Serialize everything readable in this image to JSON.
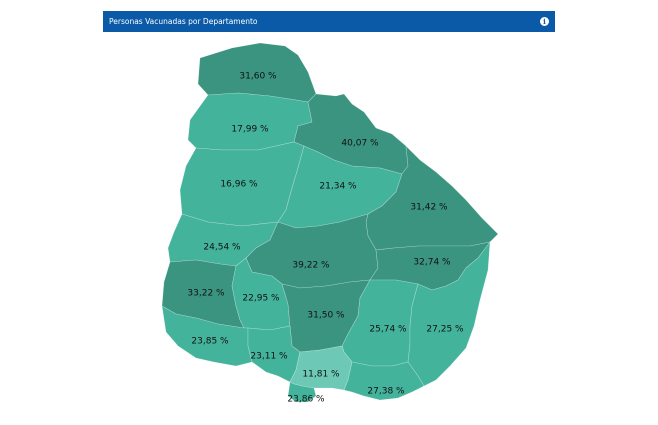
{
  "header": {
    "title": "Personas Vacunadas por Departamento",
    "info_icon": "info-icon"
  },
  "colors": {
    "header_bg": "#0a5aa8",
    "dark": "#3a9480",
    "mid": "#44b39c",
    "light": "#6dc9b6"
  },
  "departments": [
    {
      "id": "artigas",
      "label": "31,60 %",
      "shade": "dark"
    },
    {
      "id": "salto",
      "label": "17,99 %",
      "shade": "mid"
    },
    {
      "id": "rivera",
      "label": "40,07 %",
      "shade": "dark"
    },
    {
      "id": "paysandu",
      "label": "16,96 %",
      "shade": "mid"
    },
    {
      "id": "tacuarembo",
      "label": "21,34 %",
      "shade": "mid"
    },
    {
      "id": "cerro-largo",
      "label": "31,42 %",
      "shade": "dark"
    },
    {
      "id": "rio-negro",
      "label": "24,54 %",
      "shade": "mid"
    },
    {
      "id": "durazno",
      "label": "39,22 %",
      "shade": "dark"
    },
    {
      "id": "treinta-y-tres",
      "label": "32,74 %",
      "shade": "dark"
    },
    {
      "id": "soriano",
      "label": "33,22 %",
      "shade": "dark"
    },
    {
      "id": "flores",
      "label": "22,95 %",
      "shade": "mid"
    },
    {
      "id": "florida",
      "label": "31,50 %",
      "shade": "dark"
    },
    {
      "id": "lavalleja",
      "label": "25,74 %",
      "shade": "mid"
    },
    {
      "id": "rocha",
      "label": "27,25 %",
      "shade": "mid"
    },
    {
      "id": "colonia",
      "label": "23,85 %",
      "shade": "mid"
    },
    {
      "id": "san-jose",
      "label": "23,11 %",
      "shade": "mid"
    },
    {
      "id": "canelones",
      "label": "11,81 %",
      "shade": "light"
    },
    {
      "id": "maldonado",
      "label": "27,38 %",
      "shade": "mid"
    },
    {
      "id": "montevideo",
      "label": "23,86 %",
      "shade": "mid"
    }
  ]
}
